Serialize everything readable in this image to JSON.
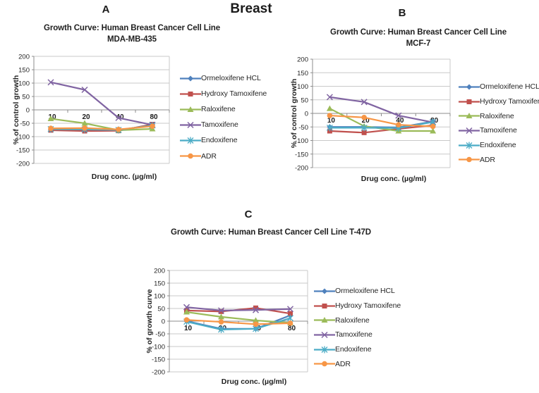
{
  "page": {
    "title": "Breast",
    "panel_labels": [
      "A",
      "B",
      "C"
    ]
  },
  "chart_data": [
    {
      "id": "chart-a",
      "panel_label": "A",
      "type": "line",
      "title_line1": "Growth Curve: Human Breast Cancer Cell Line",
      "title_line2": "MDA-MB-435",
      "xlabel": "Drug conc. (µg/ml)",
      "ylabel": "% of control growth",
      "ylim": [
        -200,
        200
      ],
      "ytick_step": 50,
      "grid": true,
      "legend_position": "right",
      "categories": [
        "10",
        "20",
        "40",
        "80"
      ],
      "series": [
        {
          "name": "Ormeloxifene HCL",
          "marker": "diamond",
          "color": "#4F81BD",
          "values": [
            -74,
            -74,
            -76,
            -57
          ]
        },
        {
          "name": "Hydroxy Tamoxifene",
          "marker": "square",
          "color": "#C0504D",
          "values": [
            -76,
            -79,
            -78,
            -54
          ]
        },
        {
          "name": "Raloxifene",
          "marker": "triangle",
          "color": "#9BBB59",
          "values": [
            -33,
            -50,
            -76,
            -71
          ]
        },
        {
          "name": "Tamoxifene",
          "marker": "x",
          "color": "#8064A2",
          "values": [
            103,
            75,
            -30,
            -56
          ]
        },
        {
          "name": "Endoxifene",
          "marker": "asterisk",
          "color": "#4BACC6",
          "values": [
            -72,
            -73,
            -75,
            -58
          ]
        },
        {
          "name": "ADR",
          "marker": "circle",
          "color": "#F79646",
          "values": [
            -69,
            -68,
            -73,
            -61
          ]
        }
      ]
    },
    {
      "id": "chart-b",
      "panel_label": "B",
      "type": "line",
      "title_line1": "Growth Curve: Human Breast Cancer Cell Line",
      "title_line2": "MCF-7",
      "xlabel": "Drug conc. (µg/ml)",
      "ylabel": "% of control growth",
      "ylim": [
        -200,
        200
      ],
      "ytick_step": 50,
      "grid": true,
      "legend_position": "right",
      "categories": [
        "10",
        "20",
        "40",
        "80"
      ],
      "series": [
        {
          "name": "Ormeloxifene HCL",
          "marker": "diamond",
          "color": "#4F81BD",
          "values": [
            -50,
            -50,
            -52,
            -30
          ]
        },
        {
          "name": "Hydroxy Tamoxifene",
          "marker": "square",
          "color": "#C0504D",
          "values": [
            -65,
            -71,
            -57,
            -44
          ]
        },
        {
          "name": "Raloxifene",
          "marker": "triangle",
          "color": "#9BBB59",
          "values": [
            18,
            -47,
            -65,
            -65
          ]
        },
        {
          "name": "Tamoxifene",
          "marker": "x",
          "color": "#8064A2",
          "values": [
            60,
            42,
            -8,
            -33
          ]
        },
        {
          "name": "Endoxifene",
          "marker": "asterisk",
          "color": "#4BACC6",
          "values": [
            -53,
            -53,
            -54,
            -32
          ]
        },
        {
          "name": "ADR",
          "marker": "circle",
          "color": "#F79646",
          "values": [
            -8,
            -15,
            -42,
            -48
          ]
        }
      ]
    },
    {
      "id": "chart-c",
      "panel_label": "C",
      "type": "line",
      "title_line1": "Growth Curve: Human Breast Cancer Cell Line T-47D",
      "title_line2": "",
      "xlabel": "Drug conc. (µg/ml)",
      "ylabel": "% of growth curve",
      "ylim": [
        -200,
        200
      ],
      "ytick_step": 50,
      "grid": true,
      "legend_position": "right",
      "categories": [
        "10",
        "20",
        "40",
        "80"
      ],
      "series": [
        {
          "name": "Ormeloxifene HCL",
          "marker": "diamond",
          "color": "#4F81BD",
          "values": [
            0,
            -30,
            -30,
            23
          ]
        },
        {
          "name": "Hydroxy Tamoxifene",
          "marker": "square",
          "color": "#C0504D",
          "values": [
            42,
            38,
            52,
            30
          ]
        },
        {
          "name": "Raloxifene",
          "marker": "triangle",
          "color": "#9BBB59",
          "values": [
            36,
            17,
            3,
            -7
          ]
        },
        {
          "name": "Tamoxifene",
          "marker": "x",
          "color": "#8064A2",
          "values": [
            55,
            42,
            44,
            48
          ]
        },
        {
          "name": "Endoxifene",
          "marker": "asterisk",
          "color": "#4BACC6",
          "values": [
            -2,
            -33,
            -30,
            12
          ]
        },
        {
          "name": "ADR",
          "marker": "circle",
          "color": "#F79646",
          "values": [
            5,
            -3,
            -12,
            -8
          ]
        }
      ]
    }
  ]
}
